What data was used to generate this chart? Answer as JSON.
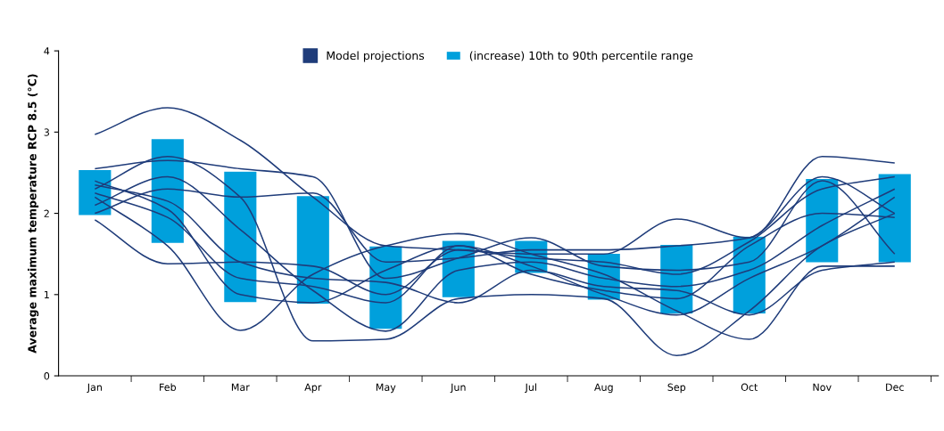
{
  "chart_data": {
    "type": "line",
    "ylabel": "Average maximum temperature RCP 8.5 (°C)",
    "categories": [
      "Jan",
      "Feb",
      "Mar",
      "Apr",
      "May",
      "Jun",
      "Jul",
      "Aug",
      "Sep",
      "Oct",
      "Nov",
      "Dec"
    ],
    "ylim": [
      0,
      4
    ],
    "yticks": [
      0,
      1,
      2,
      3,
      4
    ],
    "grid": false,
    "legend": "top",
    "series": [
      {
        "name": "Model projections",
        "color": "#1f3c7a",
        "values": [
          2.97,
          3.3,
          2.9,
          2.2,
          1.6,
          1.55,
          1.5,
          1.5,
          1.93,
          1.7,
          2.7,
          2.62
        ]
      },
      {
        "color": "#1f3c7a",
        "values": [
          1.92,
          1.38,
          1.4,
          1.35,
          1.0,
          1.55,
          1.45,
          1.4,
          1.25,
          1.65,
          2.3,
          2.45
        ]
      },
      {
        "color": "#1f3c7a",
        "values": [
          2.2,
          1.6,
          0.56,
          1.25,
          1.6,
          1.75,
          1.5,
          1.25,
          0.8,
          0.45,
          1.35,
          1.35
        ]
      },
      {
        "color": "#1f3c7a",
        "values": [
          2.3,
          2.7,
          2.2,
          0.43,
          0.45,
          0.95,
          1.0,
          0.95,
          0.25,
          0.8,
          1.6,
          2.0
        ]
      },
      {
        "color": "#1f3c7a",
        "values": [
          2.55,
          2.65,
          2.55,
          2.45,
          1.2,
          1.45,
          1.7,
          1.35,
          1.3,
          1.4,
          2.4,
          1.5
        ]
      },
      {
        "color": "#1f3c7a",
        "values": [
          2.1,
          2.45,
          1.8,
          1.05,
          0.55,
          1.3,
          1.4,
          1.2,
          1.1,
          1.3,
          1.85,
          2.3
        ]
      },
      {
        "color": "#1f3c7a",
        "values": [
          2.4,
          2.05,
          1.0,
          0.9,
          1.3,
          1.6,
          1.25,
          1.05,
          0.95,
          1.6,
          2.0,
          1.95
        ]
      },
      {
        "color": "#1f3c7a",
        "values": [
          2.0,
          2.3,
          2.2,
          2.25,
          1.4,
          1.45,
          1.55,
          1.55,
          1.6,
          1.7,
          2.45,
          2.0
        ]
      },
      {
        "color": "#1f3c7a",
        "values": [
          2.25,
          1.95,
          1.2,
          1.1,
          0.9,
          1.6,
          1.35,
          1.0,
          0.75,
          1.2,
          1.6,
          2.2
        ]
      },
      {
        "color": "#1f3c7a",
        "values": [
          2.35,
          2.15,
          1.4,
          1.2,
          1.15,
          0.9,
          1.3,
          1.1,
          1.05,
          0.75,
          1.3,
          1.4
        ]
      },
      {
        "type": "bar",
        "name": "(increase) 10th to 90th percentile range",
        "color": "#00a0dc",
        "base": [
          1.97,
          1.63,
          0.9,
          0.88,
          0.57,
          0.96,
          1.26,
          0.93,
          0.76,
          0.76,
          1.39,
          1.39
        ],
        "values": [
          0.57,
          1.29,
          1.62,
          1.34,
          1.03,
          0.71,
          0.41,
          0.58,
          0.86,
          0.96,
          1.04,
          1.1
        ]
      }
    ]
  }
}
